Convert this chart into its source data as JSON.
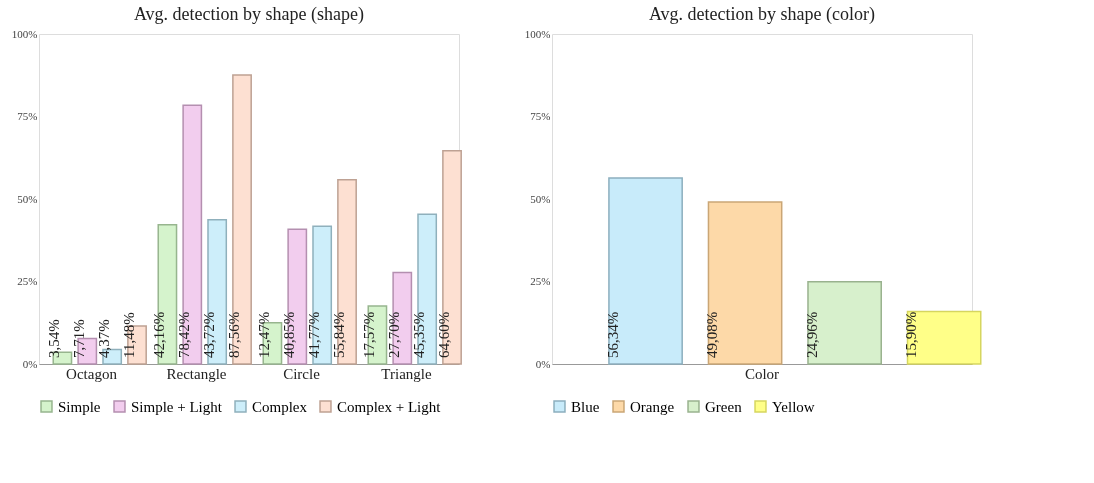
{
  "chart_data": [
    {
      "type": "bar",
      "title": "Avg. detection by shape (shape)",
      "categories": [
        "Octagon",
        "Rectangle",
        "Circle",
        "Triangle"
      ],
      "series": [
        {
          "name": "Simple",
          "color": "#d5f3cc",
          "values": [
            3.54,
            42.16,
            12.47,
            17.57
          ],
          "value_labels": [
            "3,54%",
            "42,16%",
            "12,47%",
            "17,57%"
          ]
        },
        {
          "name": "Simple + Light",
          "color": "#f2cdee",
          "values": [
            7.71,
            78.42,
            40.85,
            27.7
          ],
          "value_labels": [
            "7,71%",
            "78,42%",
            "40,85%",
            "27,70%"
          ]
        },
        {
          "name": "Complex",
          "color": "#cdeefa",
          "values": [
            4.37,
            43.72,
            41.77,
            45.35
          ],
          "value_labels": [
            "4,37%",
            "43,72%",
            "41,77%",
            "45,35%"
          ]
        },
        {
          "name": "Complex + Light",
          "color": "#fde0d2",
          "values": [
            11.48,
            87.56,
            55.84,
            64.6
          ],
          "value_labels": [
            "11,48%",
            "87,56%",
            "55,84%",
            "64,60%"
          ]
        }
      ],
      "ylim": [
        0,
        100
      ],
      "yticks": [
        {
          "value": 0,
          "label": "0%"
        },
        {
          "value": 25,
          "label": "25%"
        },
        {
          "value": 50,
          "label": "50%"
        },
        {
          "value": 75,
          "label": "75%"
        },
        {
          "value": 100,
          "label": "100%"
        }
      ],
      "grid": false,
      "legend": "bottom"
    },
    {
      "type": "bar",
      "title": "Avg. detection by shape (color)",
      "categories": [
        "Color"
      ],
      "series": [
        {
          "name": "Blue",
          "color": "#c8ebfa",
          "values": [
            56.34
          ],
          "value_labels": [
            "56,34%"
          ]
        },
        {
          "name": "Orange",
          "color": "#fdd9a8",
          "values": [
            49.08
          ],
          "value_labels": [
            "49,08%"
          ]
        },
        {
          "name": "Green",
          "color": "#d7f0cc",
          "values": [
            24.96
          ],
          "value_labels": [
            "24,96%"
          ]
        },
        {
          "name": "Yellow",
          "color": "#ffff88",
          "values": [
            15.9
          ],
          "value_labels": [
            "15,90%"
          ]
        }
      ],
      "ylim": [
        0,
        100
      ],
      "yticks": [
        {
          "value": 0,
          "label": "0%"
        },
        {
          "value": 25,
          "label": "25%"
        },
        {
          "value": 50,
          "label": "50%"
        },
        {
          "value": 75,
          "label": "75%"
        },
        {
          "value": 100,
          "label": "100%"
        }
      ],
      "grid": false,
      "legend": "bottom"
    }
  ]
}
